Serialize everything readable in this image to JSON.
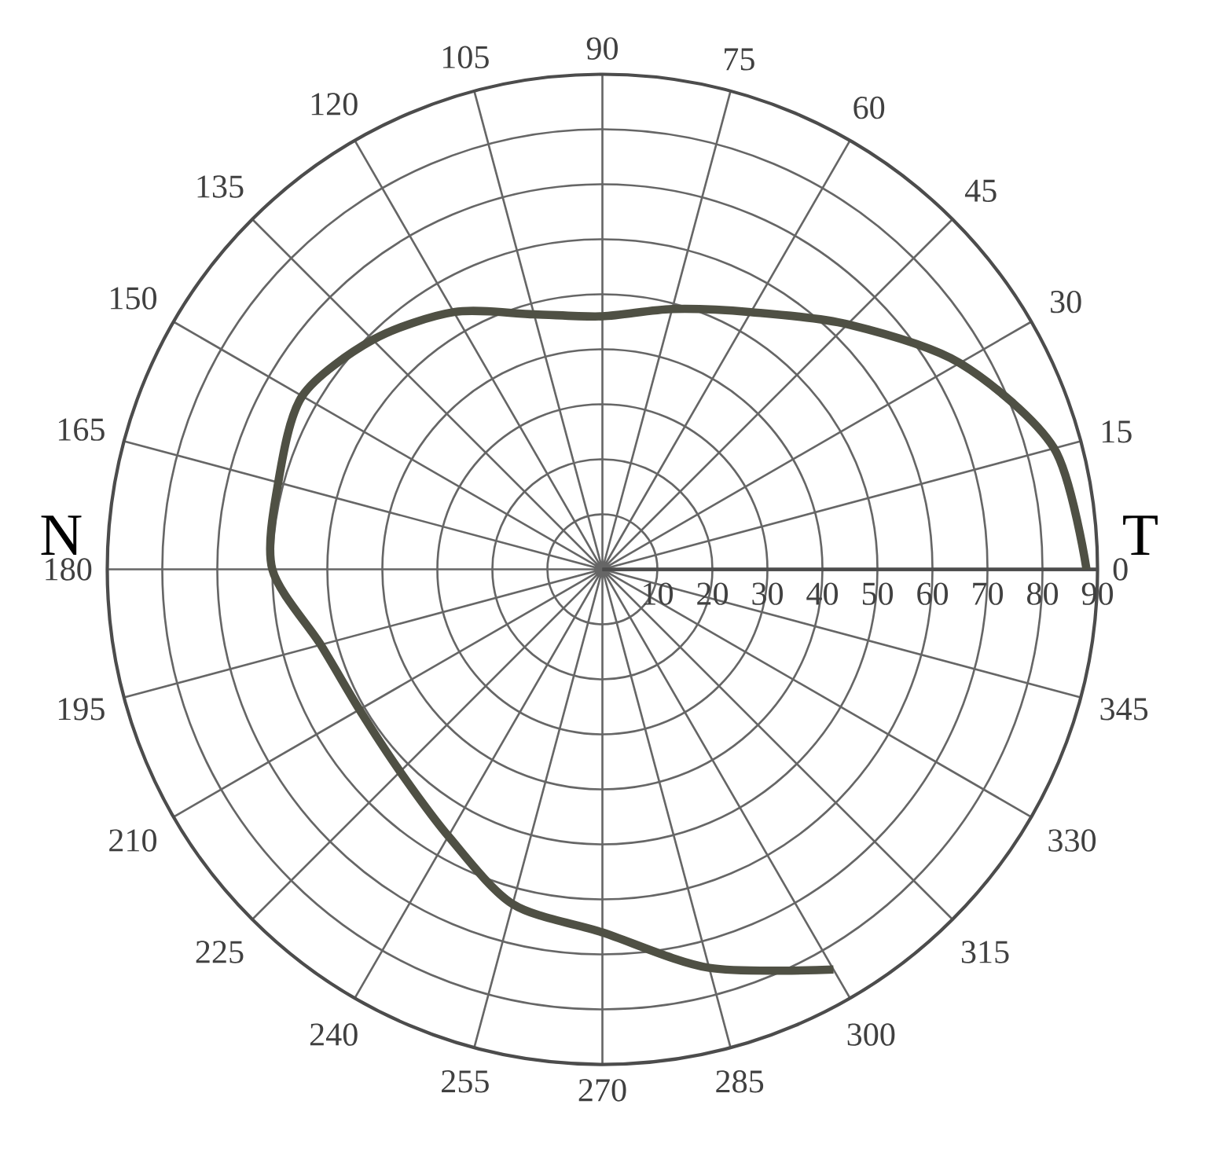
{
  "chart_data": {
    "type": "radar",
    "categories": [
      "90",
      "75",
      "60",
      "45",
      "30",
      "15",
      "0",
      "345",
      "330",
      "315",
      "300",
      "285",
      "270",
      "255",
      "240",
      "225",
      "210",
      "195",
      "180",
      "165",
      "150",
      "135",
      "120",
      "105"
    ],
    "series": [
      {
        "color": "#4f5044",
        "values": [
          46,
          49,
          54,
          63,
          75,
          85,
          88,
          null,
          null,
          null,
          84,
          75,
          66,
          63,
          56,
          52,
          51,
          53,
          60,
          61,
          63,
          59,
          54,
          48
        ]
      }
    ],
    "ylim": [
      0,
      90
    ],
    "yticks": [
      10,
      20,
      30,
      40,
      50,
      60,
      70,
      80,
      90
    ],
    "grid": true,
    "marker": "none",
    "line_style": "solid",
    "annotations": [
      "N",
      "T"
    ]
  }
}
